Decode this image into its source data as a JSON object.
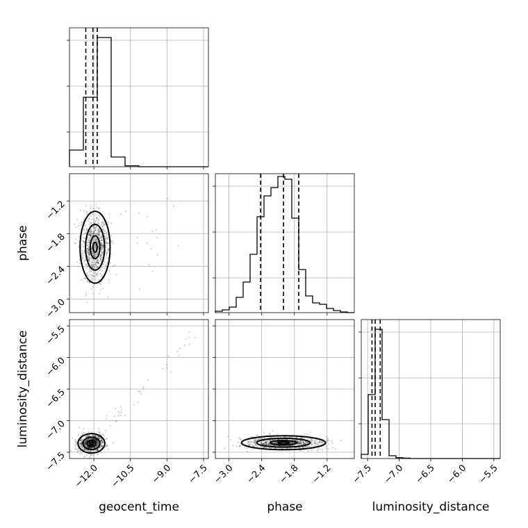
{
  "chart_data": {
    "type": "corner",
    "parameters": [
      "geocent_time",
      "phase",
      "luminosity_distance"
    ],
    "axis_labels": {
      "x": [
        "geocent_time",
        "phase",
        "luminosity_distance"
      ],
      "y": [
        "",
        "phase",
        "luminosity_distance"
      ]
    },
    "ranges": {
      "geocent_time": [
        -13.0,
        -7.3
      ],
      "phase": [
        -3.25,
        -0.7
      ],
      "luminosity_distance": [
        -7.6,
        -5.4
      ]
    },
    "ticks": {
      "geocent_time": {
        "values": [
          -12.0,
          -10.5,
          -9.0,
          -7.5
        ],
        "labels": [
          "−12.0",
          "−10.5",
          "−9.0",
          "−7.5"
        ]
      },
      "phase": {
        "values": [
          -3.0,
          -2.4,
          -1.8,
          -1.2
        ],
        "labels": [
          "−3.0",
          "−2.4",
          "−1.8",
          "−1.2"
        ]
      },
      "luminosity_distance": {
        "values": [
          -7.5,
          -7.0,
          -6.5,
          -6.0,
          -5.5
        ],
        "labels": [
          "−7.5",
          "−7.0",
          "−6.5",
          "−6.0",
          "−5.5"
        ]
      }
    },
    "histograms": [
      {
        "parameter": "geocent_time",
        "bin_edges": [
          -13.0,
          -12.43,
          -11.86,
          -11.29,
          -10.72,
          -10.15,
          -9.58,
          -9.01,
          -8.44,
          -7.87,
          -7.3
        ],
        "counts": [
          0.12,
          0.5,
          0.93,
          0.07,
          0.007,
          0.0,
          0.0,
          0.0,
          0.0,
          0.0
        ],
        "quantiles": [
          -12.33,
          -12.04,
          -11.86
        ]
      },
      {
        "parameter": "phase",
        "bin_edges": [
          -3.25,
          -3.1225,
          -2.995,
          -2.8675,
          -2.74,
          -2.6125,
          -2.485,
          -2.3575,
          -2.23,
          -2.1025,
          -1.975,
          -1.8475,
          -1.72,
          -1.5925,
          -1.465,
          -1.3375,
          -1.21,
          -1.0825,
          -0.955,
          -0.8275,
          -0.7
        ],
        "counts": [
          0.01,
          0.02,
          0.04,
          0.11,
          0.22,
          0.42,
          0.69,
          0.84,
          0.9,
          0.98,
          0.96,
          0.68,
          0.31,
          0.12,
          0.07,
          0.06,
          0.03,
          0.015,
          0.005,
          0.0
        ],
        "quantiles": [
          -2.42,
          -2.0,
          -1.72
        ]
      },
      {
        "parameter": "luminosity_distance",
        "bin_edges": [
          -7.6,
          -7.49,
          -7.38,
          -7.27,
          -7.16,
          -7.05,
          -6.94,
          -6.83,
          -6.72,
          -6.61,
          -6.5,
          -6.39,
          -6.28,
          -6.17,
          -6.06,
          -5.95,
          -5.84,
          -5.73,
          -5.62,
          -5.51,
          -5.4
        ],
        "counts": [
          0.03,
          0.46,
          0.93,
          0.28,
          0.02,
          0.006,
          0.003,
          0.0,
          0.0,
          0.0,
          0.0,
          0.0,
          0.0,
          0.0,
          0.0,
          0.0,
          0.0,
          0.0,
          0.0,
          0.0
        ],
        "quantiles": [
          -7.43,
          -7.38,
          -7.3
        ]
      }
    ],
    "scatter_panels": [
      {
        "x": "geocent_time",
        "y": "phase",
        "center": [
          -11.95,
          -2.05
        ],
        "spread": [
          0.28,
          0.3
        ]
      },
      {
        "x": "geocent_time",
        "y": "luminosity_distance",
        "center": [
          -12.1,
          -7.36
        ],
        "spread": [
          0.25,
          0.07
        ]
      },
      {
        "x": "phase",
        "y": "luminosity_distance",
        "center": [
          -2.0,
          -7.35
        ],
        "spread": [
          0.35,
          0.05
        ]
      }
    ],
    "grid": true
  }
}
